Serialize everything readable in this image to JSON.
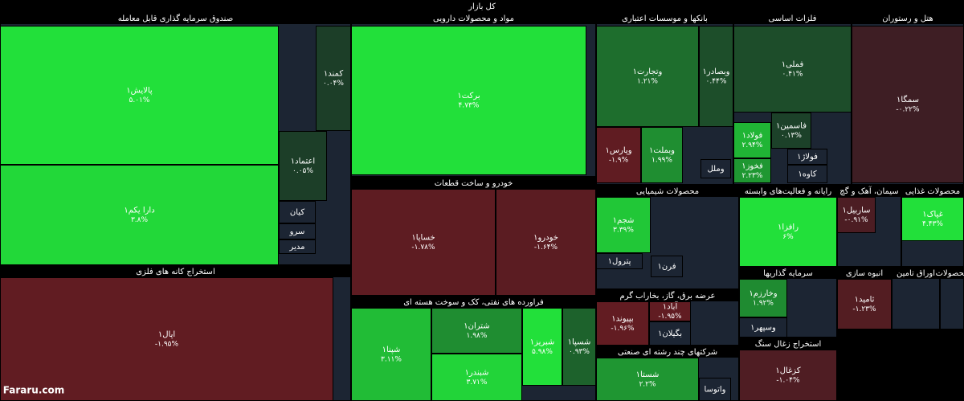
{
  "chart_data": {
    "type": "treemap",
    "title": "کل بازار",
    "sectors": [
      {
        "name": "صندوق سرمایه گذاری قابل معامله",
        "tiles": [
          {
            "name": "پالایش۱",
            "value": 5.01,
            "value_label": "۵.۰۱%"
          },
          {
            "name": "دارا یکم۱",
            "value": 3.8,
            "value_label": "۳.۸%"
          },
          {
            "name": "کمند۱",
            "value": 0.04,
            "value_label": "۰.۰۴%"
          },
          {
            "name": "اعتماد۱",
            "value": 0.05,
            "value_label": "۰.۰۵%"
          },
          {
            "name": "کیان"
          },
          {
            "name": "سرو"
          },
          {
            "name": "مدیر"
          }
        ]
      },
      {
        "name": "استخراج کانه های فلزی",
        "tiles": [
          {
            "name": "اپال۱",
            "value": -1.95,
            "value_label": "-۱.۹۵%"
          }
        ]
      },
      {
        "name": "مواد و محصولات دارویی",
        "tiles": [
          {
            "name": "برکت۱",
            "value": 4.73,
            "value_label": "۴.۷۳%"
          }
        ]
      },
      {
        "name": "خودرو و ساخت قطعات",
        "tiles": [
          {
            "name": "خساپا۱",
            "value": -1.78,
            "value_label": "-۱.۷۸%"
          },
          {
            "name": "خودرو۱",
            "value": -1.64,
            "value_label": "-۱.۶۴%"
          }
        ]
      },
      {
        "name": "فراورده های نفتی، کک و سوخت هسته ای",
        "tiles": [
          {
            "name": "شپنا۱",
            "value": 3.11,
            "value_label": "۳.۱۱%"
          },
          {
            "name": "شتران۱",
            "value": 1.98,
            "value_label": "۱.۹۸%"
          },
          {
            "name": "شبندر۱",
            "value": 3.71,
            "value_label": "۳.۷۱%"
          },
          {
            "name": "شبریز۱",
            "value": 5.98,
            "value_label": "۵.۹۸%"
          },
          {
            "name": "شسپا۱",
            "value": 0.93,
            "value_label": "۰.۹۳%"
          }
        ]
      },
      {
        "name": "بانکها و موسسات اعتباری",
        "tiles": [
          {
            "name": "وتجارت۱",
            "value": 1.21,
            "value_label": "۱.۲۱%"
          },
          {
            "name": "وبصادر۱",
            "value": 0.44,
            "value_label": "۰.۴۴%"
          },
          {
            "name": "وپارس۱",
            "value": -1.9,
            "value_label": "-۱.۹%"
          },
          {
            "name": "وبملت۱",
            "value": 1.99,
            "value_label": "۱.۹۹%"
          },
          {
            "name": "وملل"
          }
        ]
      },
      {
        "name": "فلزات اساسی",
        "tiles": [
          {
            "name": "فملی۱",
            "value": 0.41,
            "value_label": "۰.۴۱%"
          },
          {
            "name": "فاسمین۱",
            "value": 0.13,
            "value_label": "۰.۱۳%"
          },
          {
            "name": "فولاد۱",
            "value": 2.94,
            "value_label": "۲.۹۴%"
          },
          {
            "name": "فولاژ۱"
          },
          {
            "name": "فخوز۱",
            "value": 2.23,
            "value_label": "۲.۲۳%"
          },
          {
            "name": "کاوه۱"
          }
        ]
      },
      {
        "name": "هتل و رستوران",
        "tiles": [
          {
            "name": "سمگا۱",
            "value": -0.22,
            "value_label": "-۰.۲۲%"
          }
        ]
      },
      {
        "name": "محصولات شیمیایی",
        "tiles": [
          {
            "name": "شجم۱",
            "value": 3.39,
            "value_label": "۳.۳۹%"
          },
          {
            "name": "پترول۱"
          },
          {
            "name": "فرن۱"
          }
        ]
      },
      {
        "name": "رایانه و فعالیت‌های وابسته",
        "tiles": [
          {
            "name": "رافزا۱",
            "value": 6,
            "value_label": "۶%"
          }
        ]
      },
      {
        "name": "سیمان، آهک و گچ",
        "tiles": [
          {
            "name": "ساربیل۱",
            "value": -0.91,
            "value_label": "-۰.۹۱%"
          }
        ]
      },
      {
        "name": "محصولات غذایی",
        "tiles": [
          {
            "name": "غپاک۱",
            "value": 4.43,
            "value_label": "۴.۴۳%"
          }
        ]
      },
      {
        "name": "عرضه برق، گاز، بخاراب گرم",
        "tiles": [
          {
            "name": "آباد۱",
            "value": -1.95,
            "value_label": "-۱.۹۵%"
          },
          {
            "name": "بپیوند۱",
            "value": -1.96,
            "value_label": "-۱.۹۶%"
          },
          {
            "name": "بگیلان۱"
          }
        ]
      },
      {
        "name": "شرکتهای چند رشته ای صنعتی",
        "tiles": [
          {
            "name": "شستا۱",
            "value": 2.2,
            "value_label": "۲.۲%"
          },
          {
            "name": "واتوسا"
          }
        ]
      },
      {
        "name": "سرمایه گذاریها",
        "tiles": [
          {
            "name": "وخارزم۱",
            "value": 1.92,
            "value_label": "۱.۹۲%"
          },
          {
            "name": "وسپهر۱"
          }
        ]
      },
      {
        "name": "استخراج زغال سنگ",
        "tiles": [
          {
            "name": "کزغال۱",
            "value": -1.04,
            "value_label": "-۱.۰۴%"
          }
        ]
      },
      {
        "name": "انبوه سازی",
        "tiles": [
          {
            "name": "ثامید۱",
            "value": -1.23,
            "value_label": "-۱.۲۳%"
          }
        ]
      },
      {
        "name": "اوراق تامین",
        "tiles": []
      },
      {
        "name": "محصولات",
        "tiles": []
      }
    ]
  },
  "watermark": "Fararu.com"
}
